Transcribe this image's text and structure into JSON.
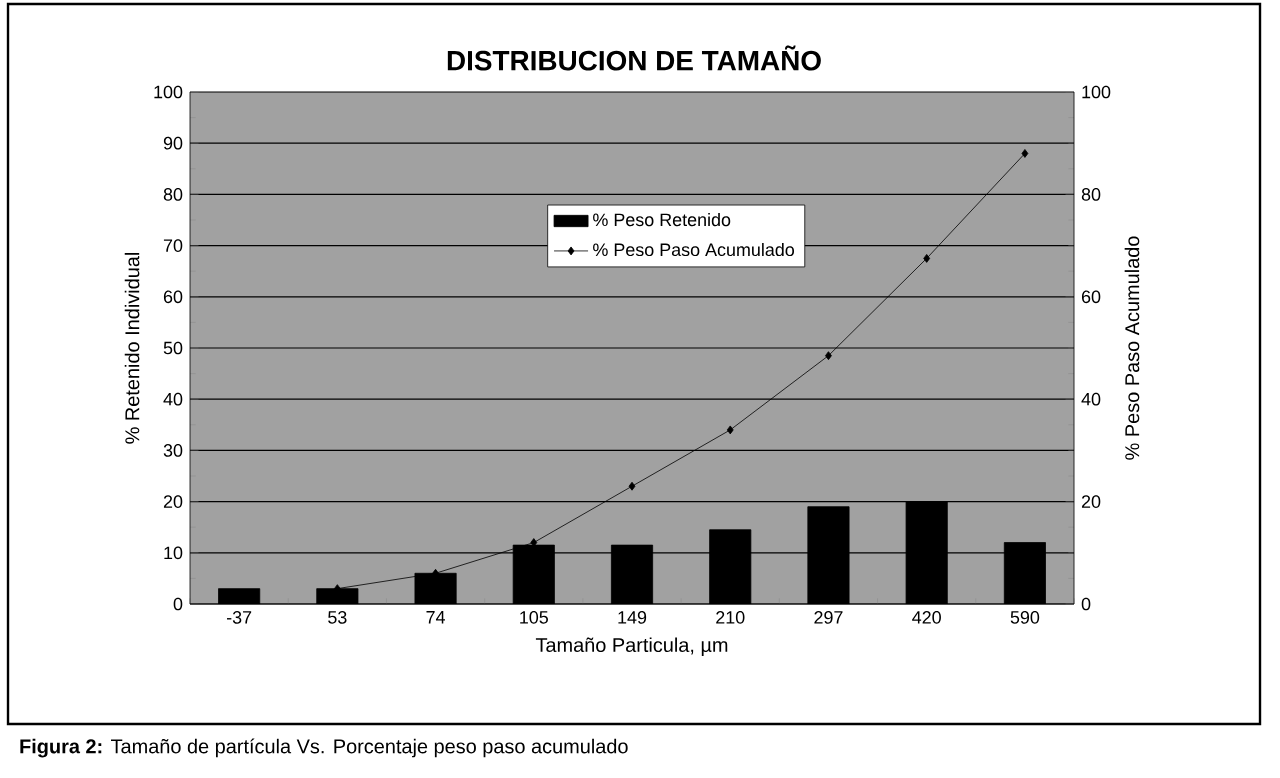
{
  "chart_data": {
    "type": "bar",
    "title": "DISTRIBUCION DE TAMAÑO",
    "xlabel": "Tamaño Particula, µm",
    "ylabel": "% Retenido Individual",
    "y2label": "% Peso Paso Acumulado",
    "categories": [
      "-37",
      "53",
      "74",
      "105",
      "149",
      "210",
      "297",
      "420",
      "590"
    ],
    "series": [
      {
        "name": "% Peso Retenido",
        "color": "#000000",
        "values": [
          3,
          3,
          6,
          11.5,
          11.5,
          14.5,
          19,
          20,
          12
        ]
      },
      {
        "name": "% Peso Paso Acumulado",
        "type": "line",
        "axis": "y2",
        "color": "#000000",
        "marker": "diamond",
        "values": [
          null,
          3,
          6,
          12,
          23,
          34,
          48.5,
          67.5,
          88
        ]
      }
    ],
    "ylim": [
      0,
      100
    ],
    "yticks": [
      0,
      10,
      20,
      30,
      40,
      50,
      60,
      70,
      80,
      90,
      100
    ],
    "y2lim": [
      0,
      100
    ],
    "y2ticks": [
      0,
      20,
      40,
      60,
      80,
      100
    ],
    "grid": "y",
    "legend": "top",
    "annotations": [
      "**Figura 2:**      Tamaño de partícula Vs. Porcentaje peso paso acumulado"
    ]
  }
}
